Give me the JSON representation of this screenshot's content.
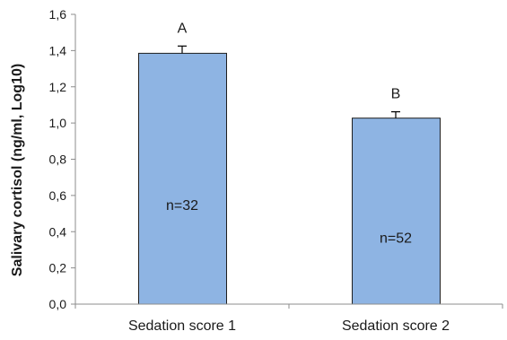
{
  "chart_data": {
    "type": "bar",
    "categories": [
      "Sedation score 1",
      "Sedation score 2"
    ],
    "values": [
      1.385,
      1.027
    ],
    "errors": [
      0.04,
      0.035
    ],
    "bar_labels": [
      "n=32",
      "n=52"
    ],
    "group_letters": [
      "A",
      "B"
    ],
    "ylabel": "Salivary cortisol (ng/ml, Log10)",
    "xlabel": "",
    "ylim": [
      0,
      1.6
    ],
    "yticks": [
      0,
      0.2,
      0.4,
      0.6,
      0.8,
      1.0,
      1.2,
      1.4,
      1.6
    ],
    "ytick_labels": [
      "0,0",
      "0,2",
      "0,4",
      "0,6",
      "0,8",
      "1,0",
      "1,2",
      "1,4",
      "1,6"
    ],
    "grid": false,
    "colors": {
      "bar_fill": "#8eb4e3",
      "bar_stroke": "#1f1f1f",
      "axis": "#8c8c8c"
    }
  }
}
